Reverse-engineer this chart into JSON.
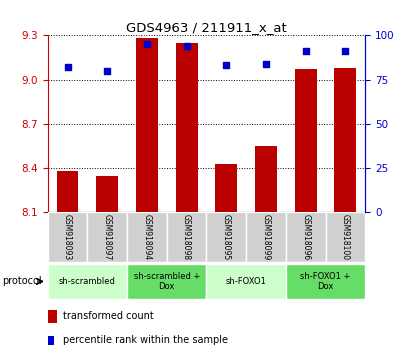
{
  "title": "GDS4963 / 211911_x_at",
  "samples": [
    "GSM918093",
    "GSM918097",
    "GSM918094",
    "GSM918098",
    "GSM918095",
    "GSM918099",
    "GSM918096",
    "GSM918100"
  ],
  "bar_values": [
    8.38,
    8.35,
    9.28,
    9.25,
    8.43,
    8.55,
    9.07,
    9.08
  ],
  "percentile_values": [
    82,
    80,
    95,
    94,
    83,
    84,
    91,
    91
  ],
  "ylim_left": [
    8.1,
    9.3
  ],
  "ylim_right": [
    0,
    100
  ],
  "yticks_left": [
    8.1,
    8.4,
    8.7,
    9.0,
    9.3
  ],
  "yticks_right": [
    0,
    25,
    50,
    75,
    100
  ],
  "bar_color": "#bb0000",
  "dot_color": "#0000cc",
  "protocol_groups": [
    {
      "label": "sh-scrambled",
      "indices": [
        0,
        1
      ],
      "color": "#ccffcc"
    },
    {
      "label": "sh-scrambled +\nDox",
      "indices": [
        2,
        3
      ],
      "color": "#66dd66"
    },
    {
      "label": "sh-FOXO1",
      "indices": [
        4,
        5
      ],
      "color": "#ccffcc"
    },
    {
      "label": "sh-FOXO1 +\nDox",
      "indices": [
        6,
        7
      ],
      "color": "#66dd66"
    }
  ],
  "legend_bar_label": "transformed count",
  "legend_dot_label": "percentile rank within the sample",
  "protocol_label": "protocol",
  "axis_color_left": "#cc0000",
  "axis_color_right": "#0000cc",
  "sample_bg_color": "#d0d0d0",
  "sample_border_color": "#ffffff"
}
